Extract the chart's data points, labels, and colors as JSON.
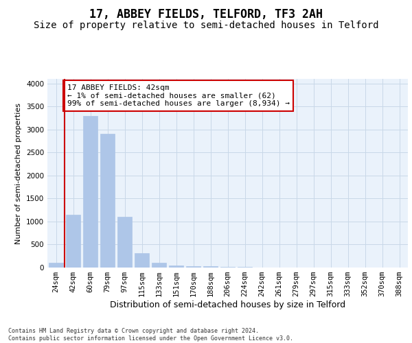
{
  "title": "17, ABBEY FIELDS, TELFORD, TF3 2AH",
  "subtitle": "Size of property relative to semi-detached houses in Telford",
  "xlabel": "Distribution of semi-detached houses by size in Telford",
  "ylabel": "Number of semi-detached properties",
  "footnote": "Contains HM Land Registry data © Crown copyright and database right 2024.\nContains public sector information licensed under the Open Government Licence v3.0.",
  "categories": [
    "24sqm",
    "42sqm",
    "60sqm",
    "79sqm",
    "97sqm",
    "115sqm",
    "133sqm",
    "151sqm",
    "170sqm",
    "188sqm",
    "206sqm",
    "224sqm",
    "242sqm",
    "261sqm",
    "279sqm",
    "297sqm",
    "315sqm",
    "333sqm",
    "352sqm",
    "370sqm",
    "388sqm"
  ],
  "values": [
    100,
    1150,
    3300,
    2900,
    1100,
    320,
    110,
    50,
    30,
    25,
    15,
    10,
    5,
    2,
    1,
    1,
    0,
    0,
    0,
    0,
    0
  ],
  "bar_color": "#aec6e8",
  "bar_edge_color": "#aec6e8",
  "highlight_index": 1,
  "highlight_line_color": "#cc0000",
  "annotation_text": "17 ABBEY FIELDS: 42sqm\n← 1% of semi-detached houses are smaller (62)\n99% of semi-detached houses are larger (8,934) →",
  "annotation_box_color": "#ffffff",
  "annotation_box_edge_color": "#cc0000",
  "ylim": [
    0,
    4100
  ],
  "yticks": [
    0,
    500,
    1000,
    1500,
    2000,
    2500,
    3000,
    3500,
    4000
  ],
  "grid_color": "#c8d8e8",
  "background_color": "#eaf2fb",
  "fig_background": "#ffffff",
  "title_fontsize": 12,
  "subtitle_fontsize": 10,
  "ylabel_fontsize": 8,
  "xlabel_fontsize": 9,
  "tick_fontsize": 7.5,
  "annotation_fontsize": 8,
  "footnote_fontsize": 6
}
